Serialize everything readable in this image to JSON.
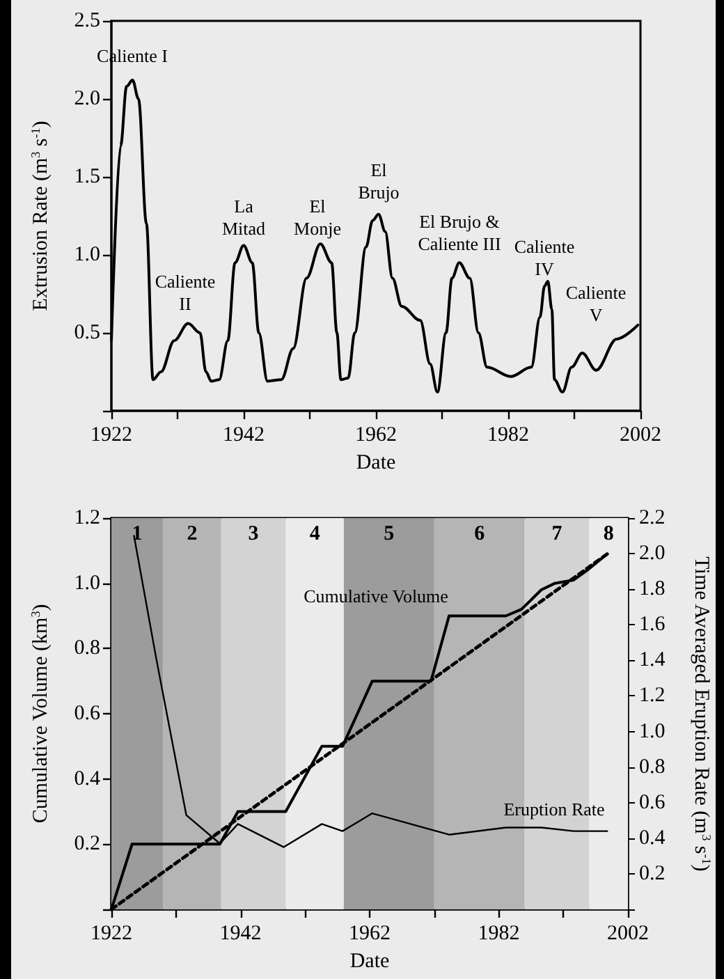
{
  "chart_data": [
    {
      "type": "line",
      "xlabel": "Date",
      "ylabel": "Extrusion Rate (m$^{3}$ s$^{-1}$)",
      "xlim": [
        1922,
        2002
      ],
      "xticks": [
        1922,
        {
          "value": 1932,
          "label": null
        },
        1942,
        {
          "value": 1952,
          "label": null
        },
        1962,
        {
          "value": 1972,
          "label": null
        },
        1982,
        {
          "value": 1992,
          "label": null
        },
        2002
      ],
      "ylim": [
        0,
        2.5
      ],
      "yticks": [
        {
          "value": 0,
          "label": null
        },
        0.5,
        {
          "value": 1,
          "label": "1.0"
        },
        1.5,
        {
          "value": 2,
          "label": "2.0"
        },
        2.5
      ],
      "grid": false,
      "marker": "none",
      "series": [
        {
          "color": "#000000",
          "x": [
            1922,
            1923.4,
            1924.3,
            1925.2,
            1926.1,
            1927.3,
            1928.3,
            1929.5,
            1931.5,
            1933.6,
            1935.4,
            1936.3,
            1937.1,
            1938.3,
            1939.6,
            1940.7,
            1942,
            1943.3,
            1944.3,
            1945.6,
            1947.7,
            1949.5,
            1951.5,
            1953.6,
            1955.3,
            1956.1,
            1956.7,
            1957.8,
            1958.8,
            1960.5,
            1961.5,
            1962.4,
            1963.4,
            1964.5,
            1965.9,
            1968.7,
            1970.2,
            1971.3,
            1972.6,
            1973.5,
            1974.6,
            1976.2,
            1977.5,
            1978.8,
            1982.4,
            1985.5,
            1986.8,
            1987.5,
            1988,
            1988.6,
            1989,
            1990.2,
            1991.6,
            1993.2,
            1995.3,
            1998.4,
            2001.6
          ],
          "values": [
            0.45,
            1.7,
            2.08,
            2.12,
            2.0,
            1.2,
            0.2,
            0.25,
            0.45,
            0.56,
            0.5,
            0.25,
            0.19,
            0.2,
            0.45,
            0.95,
            1.06,
            0.95,
            0.5,
            0.19,
            0.2,
            0.4,
            0.85,
            1.07,
            0.95,
            0.5,
            0.2,
            0.21,
            0.5,
            1.05,
            1.22,
            1.26,
            1.15,
            0.85,
            0.67,
            0.58,
            0.3,
            0.12,
            0.5,
            0.85,
            0.95,
            0.85,
            0.5,
            0.28,
            0.22,
            0.28,
            0.6,
            0.8,
            0.83,
            0.65,
            0.2,
            0.12,
            0.28,
            0.37,
            0.26,
            0.46,
            0.55
          ]
        }
      ],
      "annotations": [
        "Caliente I",
        "Caliente\nII",
        "La\nMitad",
        "El\nMonje",
        "El\nBrujo",
        "El Brujo &\nCaliente III",
        "Caliente\nIV",
        "Caliente\nV"
      ]
    },
    {
      "type": "line",
      "xlabel": "Date",
      "ylabel": "Cumulative Volume (km$^{3}$)",
      "y2label": "Time Averaged Eruption Rate (m$^{3}$ s$^{-1}$)",
      "xlim": [
        1922,
        2002
      ],
      "xticks": [
        1922,
        {
          "value": 1932,
          "label": null
        },
        1942,
        {
          "value": 1952,
          "label": null
        },
        1962,
        {
          "value": 1972,
          "label": null
        },
        1982,
        {
          "value": 1992,
          "label": null
        },
        2002
      ],
      "ylim": [
        0,
        1.2
      ],
      "yticks": [
        {
          "value": 0,
          "label": null
        },
        0.2,
        0.4,
        0.6,
        0.8,
        {
          "value": 1,
          "label": "1.0"
        },
        1.2
      ],
      "y2lim": [
        0,
        2.2
      ],
      "y2ticks": [
        {
          "value": 0,
          "label": null
        },
        0.2,
        0.4,
        0.6,
        0.8,
        {
          "value": 1,
          "label": "1.0"
        },
        1.2,
        1.4,
        1.6,
        1.8,
        {
          "value": 2,
          "label": "2.0"
        },
        2.2
      ],
      "grid": false,
      "marker": "none",
      "bands": [
        {
          "axis": "x",
          "from": 1922,
          "to": 1930,
          "label": "1",
          "color": "#9c9c9c"
        },
        {
          "axis": "x",
          "from": 1930,
          "to": 1939,
          "label": "2",
          "color": "#b5b5b5"
        },
        {
          "axis": "x",
          "from": 1939,
          "to": 1949,
          "label": "3",
          "color": "#d3d3d3"
        },
        {
          "axis": "x",
          "from": 1949,
          "to": 1958,
          "label": "4",
          "color": "#ebebeb"
        },
        {
          "axis": "x",
          "from": 1958,
          "to": 1972,
          "label": "5",
          "color": "#9c9c9c"
        },
        {
          "axis": "x",
          "from": 1972,
          "to": 1986,
          "label": "6",
          "color": "#b5b5b5"
        },
        {
          "axis": "x",
          "from": 1986,
          "to": 1996,
          "label": "7",
          "color": "#d3d3d3"
        },
        {
          "axis": "x",
          "from": 1996,
          "to": 2002,
          "label": "8",
          "color": "#ebebeb"
        }
      ],
      "series": [
        {
          "color": "#000000",
          "line_style": "solid",
          "x": [
            1922,
            1925.2,
            1938.8,
            1941.6,
            1949,
            1954.6,
            1957.8,
            1962.4,
            1971.5,
            1974.3,
            1983.1,
            1985.5,
            1988.6,
            1990.7,
            1993.6,
            1995.7,
            1998.8
          ],
          "values": [
            0,
            0.2,
            0.2,
            0.3,
            0.3,
            0.5,
            0.5,
            0.7,
            0.7,
            0.9,
            0.9,
            0.92,
            0.98,
            1.0,
            1.01,
            1.04,
            1.09
          ]
        },
        {
          "color": "#000000",
          "line_style": "dashed",
          "x": [
            1922,
            1998.8
          ],
          "values": [
            0,
            1.09
          ]
        },
        {
          "color": "#000000",
          "line_style": "solid",
          "axis": "y2",
          "x": [
            1925.5,
            1929,
            1933.6,
            1938.8,
            1941.6,
            1948.7,
            1954.6,
            1957.8,
            1962.4,
            1974.3,
            1983.1,
            1988.6,
            1993.6,
            1998.8
          ],
          "values": [
            2.1,
            1.4,
            0.53,
            0.37,
            0.48,
            0.35,
            0.48,
            0.44,
            0.54,
            0.42,
            0.46,
            0.46,
            0.44,
            0.44
          ]
        }
      ],
      "annotations": [
        "Cumulative Volume",
        "Eruption Rate"
      ]
    }
  ]
}
